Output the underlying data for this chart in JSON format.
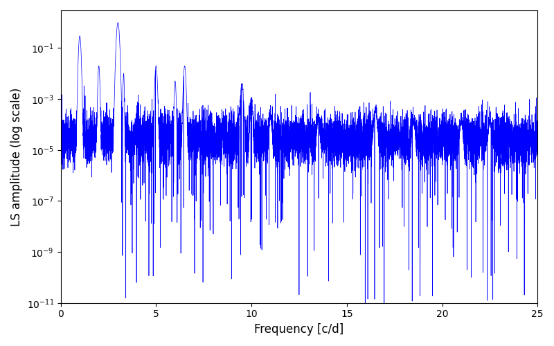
{
  "title": "",
  "xlabel": "Frequency [c/d]",
  "ylabel": "LS amplitude (log scale)",
  "xlim": [
    0,
    25
  ],
  "ylim": [
    1e-11,
    3.0
  ],
  "line_color": "#0000ff",
  "line_width": 0.5,
  "figsize": [
    8.0,
    5.0
  ],
  "dpi": 100,
  "yscale": "log",
  "seed": 12345,
  "n_points": 8000,
  "freq_max": 25.0
}
